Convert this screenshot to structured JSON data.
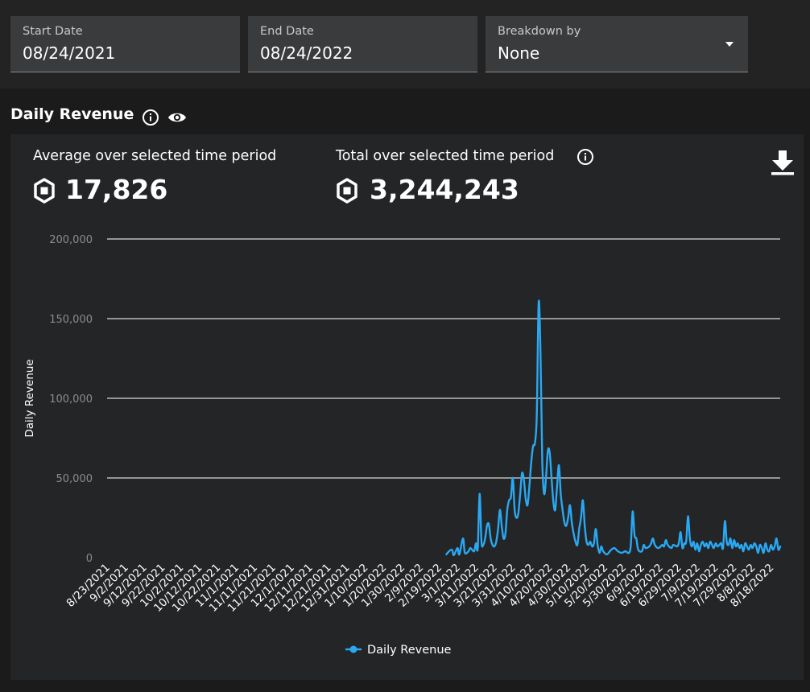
{
  "filters": {
    "start_date": {
      "label": "Start Date",
      "value": "08/24/2021"
    },
    "end_date": {
      "label": "End Date",
      "value": "08/24/2022"
    },
    "breakdown": {
      "label": "Breakdown by",
      "value": "None"
    }
  },
  "section": {
    "title": "Daily Revenue"
  },
  "stats": {
    "average": {
      "label": "Average over selected time period",
      "value": "17,826"
    },
    "total": {
      "label": "Total over selected time period",
      "value": "3,244,243"
    }
  },
  "icons": {
    "info": "info-icon",
    "visibility": "eye-icon",
    "currency": "robux-icon",
    "download": "download-icon"
  },
  "colors": {
    "series": "#2aa8f2",
    "background": "#232527"
  },
  "chart_data": {
    "type": "line",
    "ylabel": "Daily Revenue",
    "ylim": [
      0,
      200000
    ],
    "y_ticks": [
      "0",
      "50,000",
      "100,000",
      "150,000",
      "200,000"
    ],
    "y_tick_values": [
      0,
      50000,
      100000,
      150000,
      200000
    ],
    "x_ticks": [
      "8/23/2021",
      "9/2/2021",
      "9/12/2021",
      "9/22/2021",
      "10/2/2021",
      "10/12/2021",
      "10/22/2021",
      "11/1/2021",
      "11/11/2021",
      "11/21/2021",
      "12/1/2021",
      "12/11/2021",
      "12/21/2021",
      "12/31/2021",
      "1/10/2022",
      "1/20/2022",
      "1/30/2022",
      "2/9/2022",
      "2/19/2022",
      "3/1/2022",
      "3/11/2022",
      "3/21/2022",
      "3/31/2022",
      "4/10/2022",
      "4/20/2022",
      "4/30/2022",
      "5/10/2022",
      "5/20/2022",
      "5/30/2022",
      "6/9/2022",
      "6/19/2022",
      "6/29/2022",
      "7/9/2022",
      "7/19/2022",
      "7/29/2022",
      "8/8/2022",
      "8/18/2022"
    ],
    "x_range": [
      "8/23/2021",
      "8/23/2022"
    ],
    "grid": true,
    "legend": "bottom-center",
    "series": [
      {
        "name": "Daily Revenue",
        "color": "#2aa8f2",
        "points": [
          [
            "2/23/2022",
            2000
          ],
          [
            "2/24/2022",
            3500
          ],
          [
            "2/26/2022",
            5000
          ],
          [
            "2/27/2022",
            1500
          ],
          [
            "3/1/2022",
            6000
          ],
          [
            "3/2/2022",
            2000
          ],
          [
            "3/4/2022",
            12000
          ],
          [
            "3/5/2022",
            3000
          ],
          [
            "3/7/2022",
            4000
          ],
          [
            "3/8/2022",
            6000
          ],
          [
            "3/10/2022",
            4000
          ],
          [
            "3/11/2022",
            9000
          ],
          [
            "3/12/2022",
            6000
          ],
          [
            "3/13/2022",
            40000
          ],
          [
            "3/14/2022",
            10000
          ],
          [
            "3/15/2022",
            8000
          ],
          [
            "3/16/2022",
            12000
          ],
          [
            "3/17/2022",
            20000
          ],
          [
            "3/18/2022",
            21000
          ],
          [
            "3/19/2022",
            12000
          ],
          [
            "3/20/2022",
            8000
          ],
          [
            "3/21/2022",
            7000
          ],
          [
            "3/22/2022",
            10000
          ],
          [
            "3/23/2022",
            18000
          ],
          [
            "3/24/2022",
            30000
          ],
          [
            "3/25/2022",
            20000
          ],
          [
            "3/26/2022",
            12000
          ],
          [
            "3/27/2022",
            15000
          ],
          [
            "3/28/2022",
            30000
          ],
          [
            "3/29/2022",
            36000
          ],
          [
            "3/30/2022",
            38000
          ],
          [
            "3/31/2022",
            50000
          ],
          [
            "4/1/2022",
            30000
          ],
          [
            "4/2/2022",
            25000
          ],
          [
            "4/3/2022",
            28000
          ],
          [
            "4/4/2022",
            40000
          ],
          [
            "4/5/2022",
            53000
          ],
          [
            "4/6/2022",
            49000
          ],
          [
            "4/7/2022",
            37000
          ],
          [
            "4/8/2022",
            33000
          ],
          [
            "4/9/2022",
            45000
          ],
          [
            "4/10/2022",
            60000
          ],
          [
            "4/11/2022",
            70000
          ],
          [
            "4/12/2022",
            72000
          ],
          [
            "4/13/2022",
            90000
          ],
          [
            "4/14/2022",
            160000
          ],
          [
            "4/15/2022",
            130000
          ],
          [
            "4/16/2022",
            60000
          ],
          [
            "4/17/2022",
            40000
          ],
          [
            "4/18/2022",
            50000
          ],
          [
            "4/19/2022",
            67000
          ],
          [
            "4/20/2022",
            66000
          ],
          [
            "4/21/2022",
            50000
          ],
          [
            "4/22/2022",
            35000
          ],
          [
            "4/23/2022",
            30000
          ],
          [
            "4/24/2022",
            45000
          ],
          [
            "4/25/2022",
            58000
          ],
          [
            "4/26/2022",
            40000
          ],
          [
            "4/27/2022",
            30000
          ],
          [
            "4/28/2022",
            22000
          ],
          [
            "4/29/2022",
            20000
          ],
          [
            "4/30/2022",
            25000
          ],
          [
            "5/1/2022",
            33000
          ],
          [
            "5/2/2022",
            22000
          ],
          [
            "5/3/2022",
            15000
          ],
          [
            "5/4/2022",
            10000
          ],
          [
            "5/5/2022",
            8000
          ],
          [
            "5/6/2022",
            18000
          ],
          [
            "5/7/2022",
            25000
          ],
          [
            "5/8/2022",
            36000
          ],
          [
            "5/9/2022",
            20000
          ],
          [
            "5/10/2022",
            10000
          ],
          [
            "5/11/2022",
            8000
          ],
          [
            "5/12/2022",
            10000
          ],
          [
            "5/13/2022",
            7000
          ],
          [
            "5/14/2022",
            9000
          ],
          [
            "5/15/2022",
            18000
          ],
          [
            "5/16/2022",
            8000
          ],
          [
            "5/17/2022",
            3000
          ],
          [
            "5/18/2022",
            7000
          ],
          [
            "5/19/2022",
            4000
          ],
          [
            "5/21/2022",
            2000
          ],
          [
            "5/23/2022",
            4500
          ],
          [
            "5/25/2022",
            6000
          ],
          [
            "5/27/2022",
            4000
          ],
          [
            "5/29/2022",
            3000
          ],
          [
            "5/31/2022",
            4000
          ],
          [
            "6/2/2022",
            3000
          ],
          [
            "6/3/2022",
            8000
          ],
          [
            "6/4/2022",
            29000
          ],
          [
            "6/5/2022",
            14000
          ],
          [
            "6/6/2022",
            12000
          ],
          [
            "6/7/2022",
            5000
          ],
          [
            "6/9/2022",
            4000
          ],
          [
            "6/10/2022",
            8000
          ],
          [
            "6/11/2022",
            6000
          ],
          [
            "6/13/2022",
            7000
          ],
          [
            "6/14/2022",
            9000
          ],
          [
            "6/15/2022",
            12000
          ],
          [
            "6/16/2022",
            8000
          ],
          [
            "6/18/2022",
            6000
          ],
          [
            "6/20/2022",
            8000
          ],
          [
            "6/21/2022",
            7000
          ],
          [
            "6/22/2022",
            11000
          ],
          [
            "6/23/2022",
            8000
          ],
          [
            "6/25/2022",
            6000
          ],
          [
            "6/26/2022",
            8000
          ],
          [
            "6/28/2022",
            7000
          ],
          [
            "6/29/2022",
            9000
          ],
          [
            "6/30/2022",
            16000
          ],
          [
            "7/1/2022",
            6000
          ],
          [
            "7/2/2022",
            9000
          ],
          [
            "7/3/2022",
            10000
          ],
          [
            "7/4/2022",
            26000
          ],
          [
            "7/5/2022",
            12000
          ],
          [
            "7/6/2022",
            7000
          ],
          [
            "7/7/2022",
            10000
          ],
          [
            "7/8/2022",
            5000
          ],
          [
            "7/9/2022",
            9000
          ],
          [
            "7/10/2022",
            4000
          ],
          [
            "7/11/2022",
            8000
          ],
          [
            "7/12/2022",
            10000
          ],
          [
            "7/13/2022",
            7000
          ],
          [
            "7/14/2022",
            9000
          ],
          [
            "7/15/2022",
            6000
          ],
          [
            "7/16/2022",
            10000
          ],
          [
            "7/17/2022",
            8000
          ],
          [
            "7/18/2022",
            6000
          ],
          [
            "7/19/2022",
            9000
          ],
          [
            "7/20/2022",
            7000
          ],
          [
            "7/21/2022",
            8000
          ],
          [
            "7/22/2022",
            9000
          ],
          [
            "7/23/2022",
            6000
          ],
          [
            "7/24/2022",
            23000
          ],
          [
            "7/25/2022",
            10000
          ],
          [
            "7/26/2022",
            8000
          ],
          [
            "7/27/2022",
            12000
          ],
          [
            "7/28/2022",
            6000
          ],
          [
            "7/29/2022",
            11000
          ],
          [
            "7/30/2022",
            7000
          ],
          [
            "7/31/2022",
            9000
          ],
          [
            "8/1/2022",
            6000
          ],
          [
            "8/2/2022",
            8000
          ],
          [
            "8/3/2022",
            4000
          ],
          [
            "8/4/2022",
            9000
          ],
          [
            "8/5/2022",
            7000
          ],
          [
            "8/6/2022",
            5000
          ],
          [
            "8/7/2022",
            8000
          ],
          [
            "8/8/2022",
            6000
          ],
          [
            "8/9/2022",
            9000
          ],
          [
            "8/10/2022",
            7000
          ],
          [
            "8/11/2022",
            3000
          ],
          [
            "8/12/2022",
            8000
          ],
          [
            "8/13/2022",
            6000
          ],
          [
            "8/14/2022",
            3000
          ],
          [
            "8/15/2022",
            9000
          ],
          [
            "8/16/2022",
            5000
          ],
          [
            "8/17/2022",
            4000
          ],
          [
            "8/18/2022",
            8000
          ],
          [
            "8/19/2022",
            5000
          ],
          [
            "8/20/2022",
            7000
          ],
          [
            "8/21/2022",
            12000
          ],
          [
            "8/22/2022",
            5000
          ],
          [
            "8/23/2022",
            7000
          ]
        ]
      }
    ]
  }
}
